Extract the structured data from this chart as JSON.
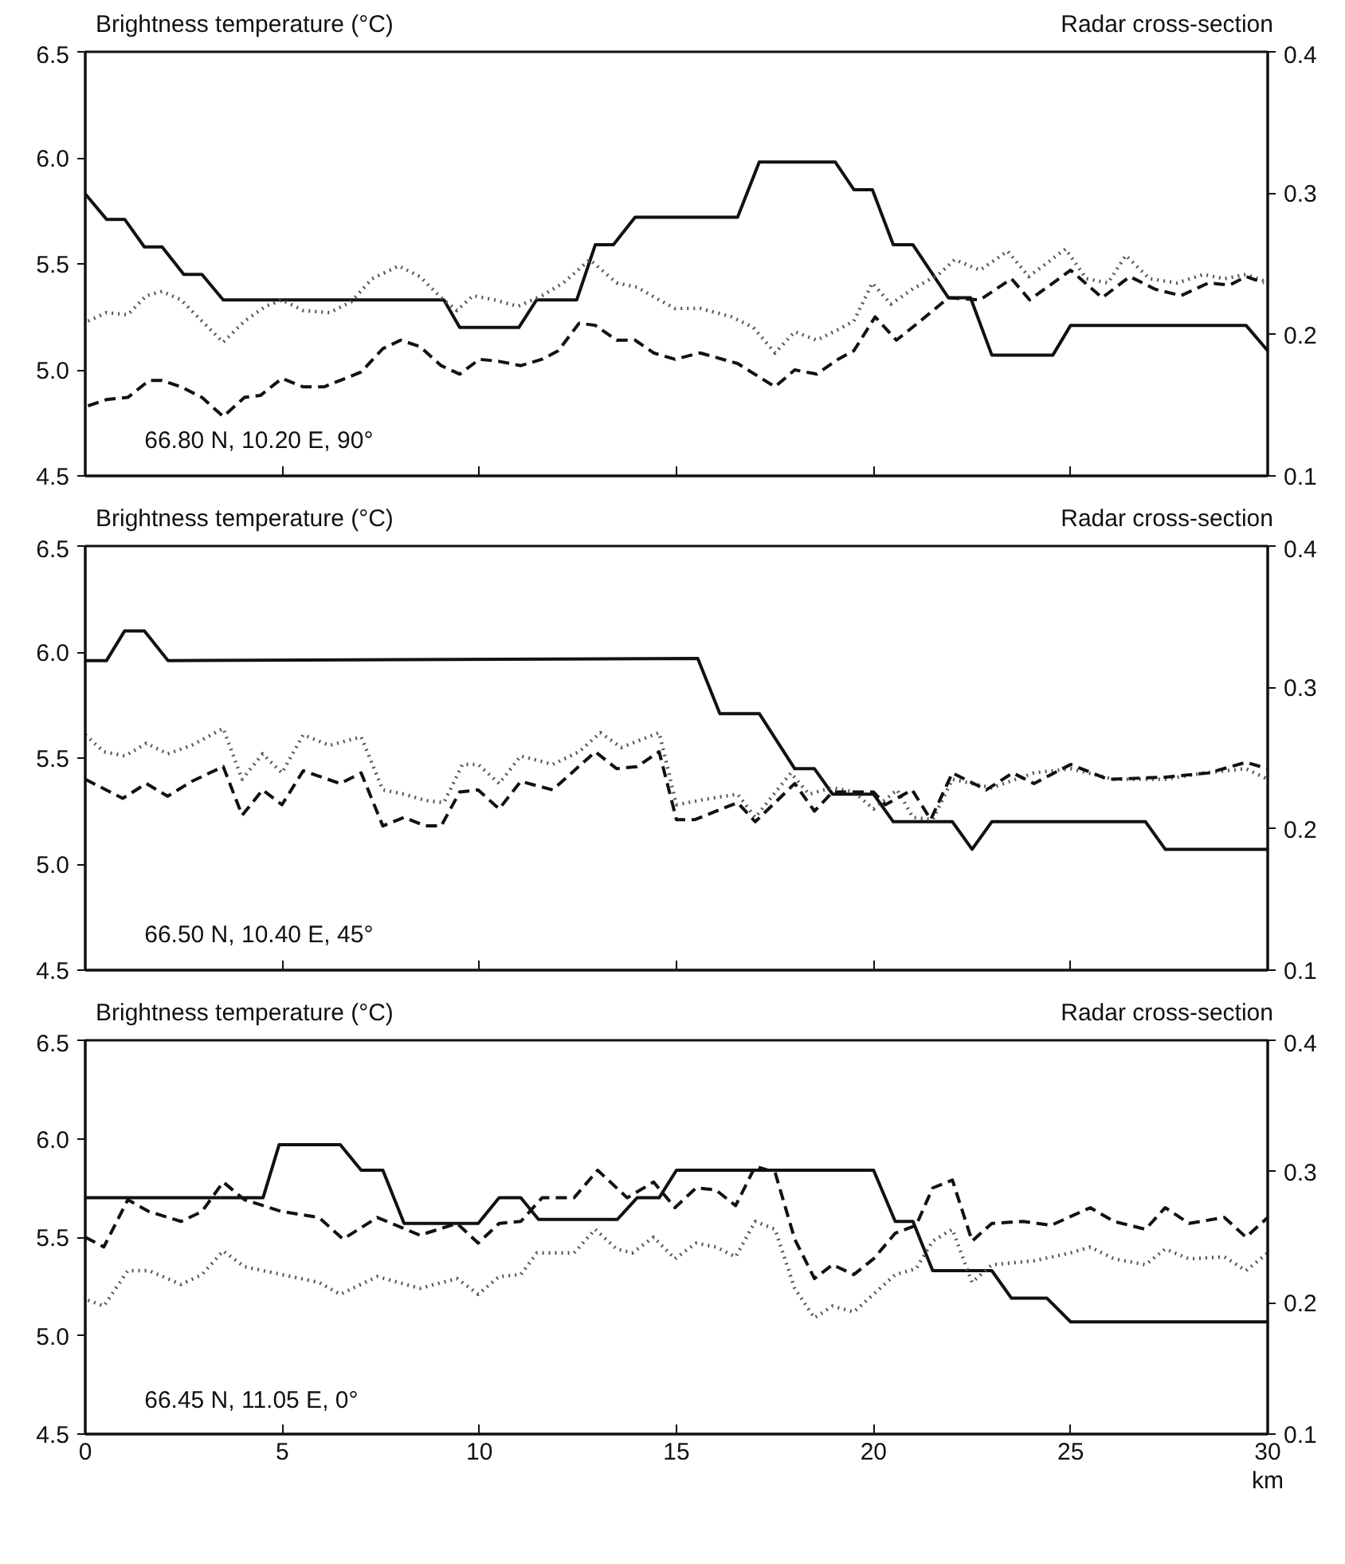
{
  "chart_data": [
    {
      "type": "line",
      "ylabel": "Brightness temperature (°C)",
      "y2label": "Radar cross-section",
      "annotations": [
        "66.80 N, 10.20 E, 90°"
      ],
      "xlim": [
        0,
        30
      ],
      "xticks": [
        {
          "value": 0,
          "label": null
        },
        {
          "value": 5,
          "label": null
        },
        {
          "value": 10,
          "label": null
        },
        {
          "value": 15,
          "label": null
        },
        {
          "value": 20,
          "label": null
        },
        {
          "value": 25,
          "label": null
        },
        {
          "value": 30,
          "label": null
        }
      ],
      "ylim": [
        4.5,
        6.5
      ],
      "yticks": [
        {
          "value": 4.5,
          "label": "4.5"
        },
        {
          "value": 5.0,
          "label": "5.0"
        },
        {
          "value": 5.5,
          "label": "5.5"
        },
        {
          "value": 6.0,
          "label": "6.0"
        },
        {
          "value": 6.5,
          "label": "6.5"
        }
      ],
      "y2lim": [
        0.1,
        0.4
      ],
      "y2ticks": [
        0.1,
        0.2,
        0.3,
        0.4
      ],
      "tick_labels": "y",
      "series": [
        {
          "color": "#111111",
          "line_style": "solid",
          "x": [
            0,
            0.54,
            1.0,
            1.5,
            1.95,
            2.5,
            2.96,
            3.5,
            9.1,
            9.5,
            11.0,
            11.45,
            12.47,
            12.94,
            13.4,
            13.95,
            16.55,
            17.1,
            19.03,
            19.5,
            19.97,
            20.5,
            21.0,
            21.9,
            22.46,
            23.0,
            24.55,
            25.0,
            29.45,
            30
          ],
          "values": [
            5.83,
            5.71,
            5.71,
            5.58,
            5.58,
            5.45,
            5.45,
            5.33,
            5.33,
            5.2,
            5.2,
            5.33,
            5.33,
            5.59,
            5.59,
            5.72,
            5.72,
            5.98,
            5.98,
            5.85,
            5.85,
            5.59,
            5.59,
            5.34,
            5.34,
            5.07,
            5.07,
            5.21,
            5.21,
            5.09
          ]
        },
        {
          "color": "#555555",
          "line_style": "dotted",
          "x": [
            0.07,
            0.54,
            1.08,
            1.55,
            1.95,
            2.43,
            2.96,
            3.5,
            4.04,
            4.58,
            4.99,
            5.53,
            6.2,
            6.74,
            7.28,
            7.95,
            8.49,
            9.03,
            9.43,
            9.84,
            10.38,
            10.98,
            11.59,
            12.13,
            12.8,
            13.48,
            14.0,
            14.56,
            14.96,
            15.6,
            16.4,
            16.95,
            17.5,
            18.0,
            18.56,
            19.1,
            19.5,
            19.97,
            20.44,
            20.98,
            21.65,
            22.06,
            22.7,
            23.4,
            23.94,
            24.87,
            25.4,
            25.95,
            26.4,
            27.0,
            27.7,
            28.37,
            28.9,
            29.45,
            29.9
          ],
          "values": [
            5.23,
            5.27,
            5.26,
            5.35,
            5.37,
            5.33,
            5.23,
            5.13,
            5.23,
            5.3,
            5.33,
            5.28,
            5.27,
            5.32,
            5.43,
            5.49,
            5.44,
            5.34,
            5.28,
            5.35,
            5.33,
            5.3,
            5.35,
            5.41,
            5.52,
            5.41,
            5.39,
            5.33,
            5.29,
            5.29,
            5.25,
            5.2,
            5.08,
            5.18,
            5.14,
            5.19,
            5.23,
            5.41,
            5.31,
            5.38,
            5.45,
            5.52,
            5.47,
            5.56,
            5.44,
            5.57,
            5.43,
            5.41,
            5.54,
            5.43,
            5.41,
            5.45,
            5.43,
            5.45,
            5.42
          ]
        },
        {
          "color": "#111111",
          "line_style": "dashed",
          "x": [
            0.07,
            0.54,
            1.08,
            1.62,
            1.95,
            2.43,
            2.96,
            3.5,
            4.04,
            4.45,
            4.99,
            5.53,
            6.06,
            6.6,
            7.0,
            7.55,
            8.0,
            8.49,
            9.03,
            9.5,
            10.0,
            10.5,
            11.05,
            11.59,
            12.0,
            12.53,
            12.94,
            13.48,
            13.95,
            14.42,
            14.96,
            15.6,
            16.55,
            17.5,
            18.0,
            18.56,
            19.1,
            19.5,
            20.04,
            20.58,
            21.25,
            21.9,
            22.7,
            23.5,
            23.96,
            25.0,
            25.8,
            26.5,
            27.15,
            27.8,
            28.5,
            29.04,
            29.45,
            29.9
          ],
          "values": [
            4.83,
            4.86,
            4.87,
            4.95,
            4.95,
            4.92,
            4.87,
            4.78,
            4.87,
            4.88,
            4.96,
            4.92,
            4.92,
            4.96,
            4.99,
            5.1,
            5.14,
            5.11,
            5.02,
            4.98,
            5.05,
            5.04,
            5.02,
            5.05,
            5.09,
            5.22,
            5.21,
            5.14,
            5.14,
            5.08,
            5.05,
            5.08,
            5.03,
            4.92,
            5.0,
            4.98,
            5.05,
            5.09,
            5.25,
            5.14,
            5.24,
            5.34,
            5.33,
            5.43,
            5.33,
            5.47,
            5.34,
            5.44,
            5.38,
            5.35,
            5.41,
            5.4,
            5.44,
            5.41
          ]
        }
      ]
    },
    {
      "type": "line",
      "ylabel": "Brightness temperature (°C)",
      "y2label": "Radar cross-section",
      "annotations": [
        "66.50 N, 10.40 E, 45°"
      ],
      "xlim": [
        0,
        30
      ],
      "xticks": [
        {
          "value": 0,
          "label": null
        },
        {
          "value": 5,
          "label": null
        },
        {
          "value": 10,
          "label": null
        },
        {
          "value": 15,
          "label": null
        },
        {
          "value": 20,
          "label": null
        },
        {
          "value": 25,
          "label": null
        },
        {
          "value": 30,
          "label": null
        }
      ],
      "ylim": [
        4.5,
        6.5
      ],
      "yticks": [
        {
          "value": 4.5,
          "label": "4.5"
        },
        {
          "value": 5.0,
          "label": "5.0"
        },
        {
          "value": 5.5,
          "label": "5.5"
        },
        {
          "value": 6.0,
          "label": "6.0"
        },
        {
          "value": 6.5,
          "label": "6.5"
        }
      ],
      "y2lim": [
        0.1,
        0.4
      ],
      "y2ticks": [
        0.1,
        0.2,
        0.3,
        0.4
      ],
      "tick_labels": "y",
      "series": [
        {
          "color": "#111111",
          "line_style": "solid",
          "x": [
            0,
            0.54,
            1.0,
            1.5,
            2.1,
            15.54,
            16.1,
            17.1,
            18.0,
            18.5,
            18.96,
            20.0,
            20.5,
            22.0,
            22.5,
            23.0,
            26.9,
            27.4,
            30
          ],
          "values": [
            5.96,
            5.96,
            6.1,
            6.1,
            5.96,
            5.97,
            5.71,
            5.71,
            5.45,
            5.45,
            5.33,
            5.33,
            5.2,
            5.2,
            5.07,
            5.2,
            5.2,
            5.07,
            5.07
          ]
        },
        {
          "color": "#555555",
          "line_style": "dotted",
          "x": [
            0,
            0.47,
            1.01,
            1.55,
            2.09,
            2.7,
            3.5,
            3.98,
            4.5,
            4.99,
            5.53,
            6.2,
            7.0,
            7.55,
            8.09,
            8.63,
            9.1,
            9.57,
            9.97,
            10.5,
            11.05,
            11.86,
            12.53,
            13.07,
            13.6,
            14.56,
            15.0,
            15.87,
            16.55,
            17.0,
            17.9,
            18.36,
            18.96,
            19.5,
            20.0,
            20.6,
            21.0,
            21.5,
            22.0,
            23.0,
            24.07,
            25.0,
            26.1,
            27.4,
            28.4,
            29.45,
            30
          ],
          "values": [
            5.61,
            5.53,
            5.51,
            5.57,
            5.52,
            5.56,
            5.64,
            5.4,
            5.52,
            5.43,
            5.61,
            5.56,
            5.6,
            5.35,
            5.33,
            5.3,
            5.29,
            5.47,
            5.47,
            5.38,
            5.51,
            5.47,
            5.53,
            5.62,
            5.55,
            5.62,
            5.28,
            5.31,
            5.33,
            5.22,
            5.43,
            5.33,
            5.36,
            5.34,
            5.26,
            5.35,
            5.22,
            5.21,
            5.4,
            5.36,
            5.43,
            5.45,
            5.4,
            5.4,
            5.43,
            5.45,
            5.4
          ]
        },
        {
          "color": "#111111",
          "line_style": "dashed",
          "x": [
            0,
            0.95,
            1.55,
            2.09,
            2.7,
            3.5,
            3.98,
            4.5,
            4.99,
            5.53,
            6.47,
            7.0,
            7.55,
            8.09,
            8.63,
            9.03,
            9.5,
            9.97,
            10.5,
            11.05,
            11.86,
            12.94,
            13.48,
            14.0,
            14.56,
            15.0,
            15.47,
            16.55,
            17.0,
            18.0,
            18.5,
            18.96,
            20.0,
            20.3,
            20.98,
            21.45,
            22.0,
            22.86,
            23.53,
            24.07,
            25.0,
            25.95,
            27.4,
            28.5,
            29.45,
            30
          ],
          "values": [
            5.4,
            5.31,
            5.38,
            5.32,
            5.39,
            5.46,
            5.23,
            5.35,
            5.28,
            5.44,
            5.38,
            5.43,
            5.18,
            5.22,
            5.18,
            5.18,
            5.34,
            5.35,
            5.26,
            5.39,
            5.35,
            5.53,
            5.45,
            5.46,
            5.53,
            5.21,
            5.21,
            5.29,
            5.2,
            5.38,
            5.25,
            5.34,
            5.34,
            5.28,
            5.35,
            5.21,
            5.43,
            5.35,
            5.43,
            5.38,
            5.47,
            5.4,
            5.41,
            5.43,
            5.48,
            5.45
          ]
        }
      ]
    },
    {
      "type": "line",
      "ylabel": "Brightness temperature (°C)",
      "y2label": "Radar cross-section",
      "xlabel": "km",
      "annotations": [
        "66.45 N, 11.05 E, 0°"
      ],
      "xlim": [
        0,
        30
      ],
      "xticks": [
        0,
        5,
        10,
        15,
        20,
        25,
        30
      ],
      "ylim": [
        4.5,
        6.5
      ],
      "yticks": [
        {
          "value": 4.5,
          "label": "4.5"
        },
        {
          "value": 5.0,
          "label": "5.0"
        },
        {
          "value": 5.5,
          "label": "5.5"
        },
        {
          "value": 6.0,
          "label": "6.0"
        },
        {
          "value": 6.5,
          "label": "6.5"
        }
      ],
      "y2lim": [
        0.1,
        0.4
      ],
      "y2ticks": [
        0.1,
        0.2,
        0.3,
        0.4
      ],
      "series": [
        {
          "color": "#111111",
          "line_style": "solid",
          "x": [
            0,
            4.51,
            4.92,
            6.47,
            7.0,
            7.55,
            8.09,
            9.97,
            10.5,
            11.05,
            11.5,
            13.5,
            14.0,
            14.56,
            15.0,
            20.0,
            20.55,
            21.0,
            21.5,
            23.0,
            23.5,
            24.4,
            25.0,
            30
          ],
          "values": [
            5.7,
            5.7,
            5.97,
            5.97,
            5.84,
            5.84,
            5.57,
            5.57,
            5.7,
            5.7,
            5.59,
            5.59,
            5.7,
            5.7,
            5.84,
            5.84,
            5.58,
            5.58,
            5.33,
            5.33,
            5.19,
            5.19,
            5.07,
            5.07
          ]
        },
        {
          "color": "#555555",
          "line_style": "dotted",
          "x": [
            0.07,
            0.47,
            1.08,
            1.62,
            2.43,
            2.96,
            3.5,
            4.04,
            4.99,
            5.93,
            6.47,
            7.41,
            8.49,
            9.43,
            9.97,
            10.5,
            11.05,
            11.46,
            12.4,
            12.94,
            13.48,
            13.88,
            14.42,
            14.96,
            15.5,
            16.0,
            16.5,
            17.0,
            17.5,
            18.0,
            18.5,
            18.96,
            19.5,
            20.0,
            20.55,
            21.08,
            21.5,
            22.0,
            22.5,
            23.0,
            24.07,
            25.0,
            25.5,
            26.1,
            26.9,
            27.4,
            28.0,
            28.9,
            29.45,
            30
          ],
          "values": [
            5.18,
            5.15,
            5.33,
            5.33,
            5.26,
            5.31,
            5.43,
            5.35,
            5.31,
            5.27,
            5.21,
            5.3,
            5.24,
            5.29,
            5.21,
            5.3,
            5.31,
            5.42,
            5.42,
            5.54,
            5.44,
            5.42,
            5.5,
            5.39,
            5.47,
            5.45,
            5.4,
            5.58,
            5.54,
            5.24,
            5.09,
            5.15,
            5.12,
            5.21,
            5.31,
            5.34,
            5.48,
            5.54,
            5.27,
            5.36,
            5.38,
            5.42,
            5.45,
            5.39,
            5.36,
            5.44,
            5.39,
            5.4,
            5.33,
            5.42
          ]
        },
        {
          "color": "#111111",
          "line_style": "dashed",
          "x": [
            0,
            0.47,
            1.08,
            1.62,
            2.43,
            2.96,
            3.5,
            4.04,
            4.99,
            5.93,
            6.54,
            7.41,
            8.49,
            9.43,
            9.97,
            10.5,
            11.05,
            11.59,
            12.4,
            13.0,
            13.75,
            14.42,
            14.96,
            15.5,
            16.0,
            16.5,
            17.0,
            17.5,
            18.0,
            18.5,
            18.96,
            19.5,
            20.0,
            20.55,
            21.08,
            21.5,
            22.0,
            22.5,
            23.0,
            23.8,
            24.5,
            25.5,
            26.1,
            26.9,
            27.4,
            28.0,
            28.9,
            29.45,
            30
          ],
          "values": [
            5.5,
            5.45,
            5.69,
            5.63,
            5.58,
            5.63,
            5.78,
            5.69,
            5.63,
            5.6,
            5.49,
            5.6,
            5.51,
            5.57,
            5.47,
            5.57,
            5.58,
            5.7,
            5.7,
            5.84,
            5.7,
            5.78,
            5.65,
            5.75,
            5.74,
            5.66,
            5.86,
            5.83,
            5.49,
            5.29,
            5.36,
            5.31,
            5.39,
            5.52,
            5.56,
            5.75,
            5.79,
            5.48,
            5.57,
            5.58,
            5.56,
            5.65,
            5.58,
            5.54,
            5.65,
            5.57,
            5.6,
            5.5,
            5.6
          ]
        }
      ]
    }
  ]
}
